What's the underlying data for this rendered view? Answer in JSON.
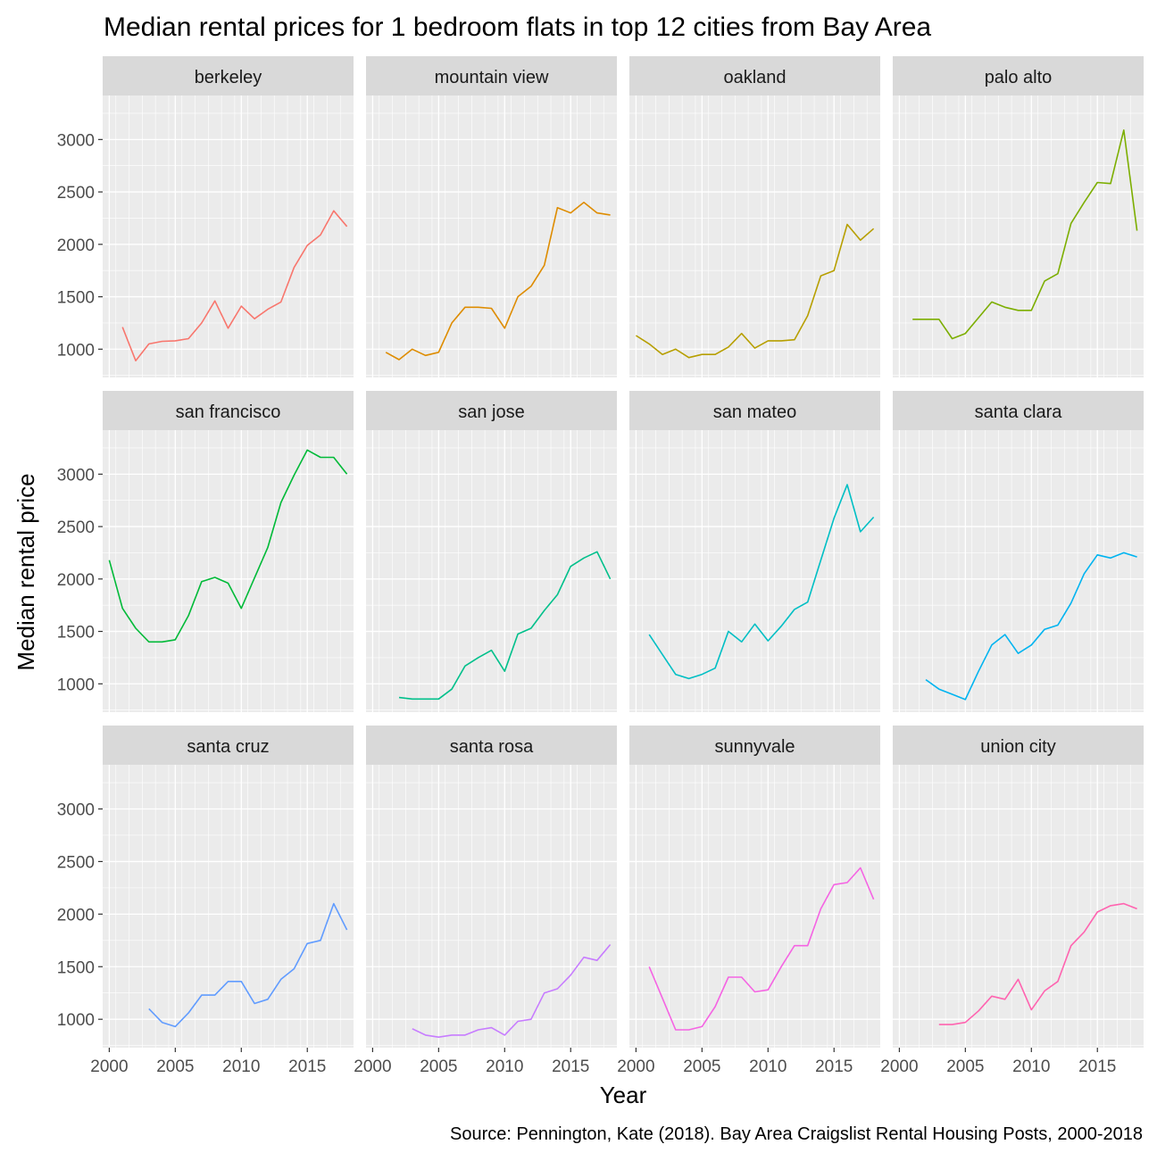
{
  "chart_data": {
    "type": "line",
    "title": "Median rental prices for 1 bedroom flats in top 12 cities from Bay Area",
    "xlabel": "Year",
    "ylabel": "Median rental price",
    "caption": "Source: Pennington, Kate (2018). Bay Area Craigslist Rental Housing Posts, 2000-2018",
    "xlim": [
      1999.5,
      2018.5
    ],
    "ylim": [
      730,
      3420
    ],
    "x_ticks": [
      2000,
      2005,
      2010,
      2015
    ],
    "x_tick_labels": [
      "2000",
      "2005",
      "2010",
      "2015"
    ],
    "y_ticks": [
      1000,
      1500,
      2000,
      2500,
      3000
    ],
    "y_tick_labels": [
      "1000",
      "1500",
      "2000",
      "2500",
      "3000"
    ],
    "grid": true,
    "legend": "none",
    "facets": [
      {
        "name": "berkeley",
        "color": "#F8766D",
        "x": [
          2001,
          2002,
          2003,
          2004,
          2005,
          2006,
          2007,
          2008,
          2009,
          2010,
          2011,
          2012,
          2013,
          2014,
          2015,
          2016,
          2017,
          2018
        ],
        "y": [
          1210,
          890,
          1050,
          1075,
          1080,
          1100,
          1250,
          1460,
          1200,
          1410,
          1290,
          1380,
          1450,
          1780,
          1990,
          2090,
          2320,
          2170
        ]
      },
      {
        "name": "mountain view",
        "color": "#DE8C00",
        "x": [
          2001,
          2002,
          2003,
          2004,
          2005,
          2006,
          2007,
          2008,
          2009,
          2010,
          2011,
          2012,
          2013,
          2014,
          2015,
          2016,
          2017,
          2018
        ],
        "y": [
          970,
          900,
          1000,
          940,
          970,
          1250,
          1400,
          1400,
          1390,
          1200,
          1500,
          1600,
          1800,
          2350,
          2300,
          2400,
          2300,
          2280
        ]
      },
      {
        "name": "oakland",
        "color": "#B79F00",
        "x": [
          2000,
          2001,
          2002,
          2003,
          2004,
          2005,
          2006,
          2007,
          2008,
          2009,
          2010,
          2011,
          2012,
          2013,
          2014,
          2015,
          2016,
          2017,
          2018
        ],
        "y": [
          1130,
          1050,
          950,
          1000,
          920,
          950,
          950,
          1020,
          1150,
          1010,
          1080,
          1080,
          1090,
          1320,
          1700,
          1750,
          2190,
          2040,
          2150
        ]
      },
      {
        "name": "palo alto",
        "color": "#7CAE00",
        "x": [
          2001,
          2002,
          2003,
          2004,
          2005,
          2006,
          2007,
          2008,
          2009,
          2010,
          2011,
          2012,
          2013,
          2014,
          2015,
          2016,
          2017,
          2018
        ],
        "y": [
          1285,
          1285,
          1285,
          1100,
          1150,
          1300,
          1450,
          1400,
          1370,
          1370,
          1650,
          1720,
          2200,
          2400,
          2590,
          2580,
          3090,
          2130
        ]
      },
      {
        "name": "san francisco",
        "color": "#00BA38",
        "x": [
          2000,
          2001,
          2002,
          2003,
          2004,
          2005,
          2006,
          2007,
          2008,
          2009,
          2010,
          2011,
          2012,
          2013,
          2014,
          2015,
          2016,
          2017,
          2018
        ],
        "y": [
          2180,
          1720,
          1530,
          1400,
          1400,
          1420,
          1650,
          1975,
          2015,
          1960,
          1720,
          2010,
          2300,
          2730,
          2990,
          3230,
          3160,
          3160,
          3000
        ]
      },
      {
        "name": "san jose",
        "color": "#00C08B",
        "x": [
          2002,
          2003,
          2004,
          2005,
          2006,
          2007,
          2008,
          2009,
          2010,
          2011,
          2012,
          2013,
          2014,
          2015,
          2016,
          2017,
          2018
        ],
        "y": [
          870,
          855,
          855,
          855,
          950,
          1170,
          1250,
          1320,
          1120,
          1475,
          1530,
          1700,
          1850,
          2120,
          2200,
          2260,
          2000
        ]
      },
      {
        "name": "san mateo",
        "color": "#00BFC4",
        "x": [
          2001,
          2002,
          2003,
          2004,
          2005,
          2006,
          2007,
          2008,
          2009,
          2010,
          2011,
          2012,
          2013,
          2014,
          2015,
          2016,
          2017,
          2018
        ],
        "y": [
          1470,
          1280,
          1090,
          1050,
          1090,
          1150,
          1500,
          1400,
          1570,
          1410,
          1550,
          1710,
          1780,
          2180,
          2580,
          2900,
          2450,
          2590
        ]
      },
      {
        "name": "santa clara",
        "color": "#00B4F0",
        "x": [
          2002,
          2003,
          2004,
          2005,
          2006,
          2007,
          2008,
          2009,
          2010,
          2011,
          2012,
          2013,
          2014,
          2015,
          2016,
          2017,
          2018
        ],
        "y": [
          1040,
          950,
          900,
          850,
          1120,
          1370,
          1470,
          1290,
          1370,
          1520,
          1560,
          1770,
          2050,
          2230,
          2200,
          2250,
          2210
        ]
      },
      {
        "name": "santa cruz",
        "color": "#619CFF",
        "x": [
          2003,
          2004,
          2005,
          2006,
          2007,
          2008,
          2009,
          2010,
          2011,
          2012,
          2013,
          2014,
          2015,
          2016,
          2017,
          2018
        ],
        "y": [
          1100,
          970,
          930,
          1060,
          1230,
          1230,
          1360,
          1360,
          1150,
          1190,
          1380,
          1480,
          1720,
          1750,
          2100,
          1850
        ]
      },
      {
        "name": "santa rosa",
        "color": "#C77CFF",
        "x": [
          2003,
          2004,
          2005,
          2006,
          2007,
          2008,
          2009,
          2010,
          2011,
          2012,
          2013,
          2014,
          2015,
          2016,
          2017,
          2018
        ],
        "y": [
          910,
          850,
          830,
          850,
          850,
          900,
          920,
          850,
          980,
          1000,
          1250,
          1290,
          1420,
          1590,
          1560,
          1710
        ]
      },
      {
        "name": "sunnyvale",
        "color": "#F564E3",
        "x": [
          2001,
          2002,
          2003,
          2004,
          2005,
          2006,
          2007,
          2008,
          2009,
          2010,
          2011,
          2012,
          2013,
          2014,
          2015,
          2016,
          2017,
          2018
        ],
        "y": [
          1500,
          1200,
          900,
          900,
          930,
          1120,
          1400,
          1400,
          1260,
          1280,
          1500,
          1700,
          1700,
          2050,
          2280,
          2300,
          2440,
          2140
        ]
      },
      {
        "name": "union city",
        "color": "#FF64B0",
        "x": [
          2003,
          2004,
          2005,
          2006,
          2007,
          2008,
          2009,
          2010,
          2011,
          2012,
          2013,
          2014,
          2015,
          2016,
          2017,
          2018
        ],
        "y": [
          950,
          950,
          970,
          1080,
          1220,
          1190,
          1380,
          1090,
          1270,
          1360,
          1700,
          1830,
          2020,
          2080,
          2100,
          2050
        ]
      }
    ]
  }
}
